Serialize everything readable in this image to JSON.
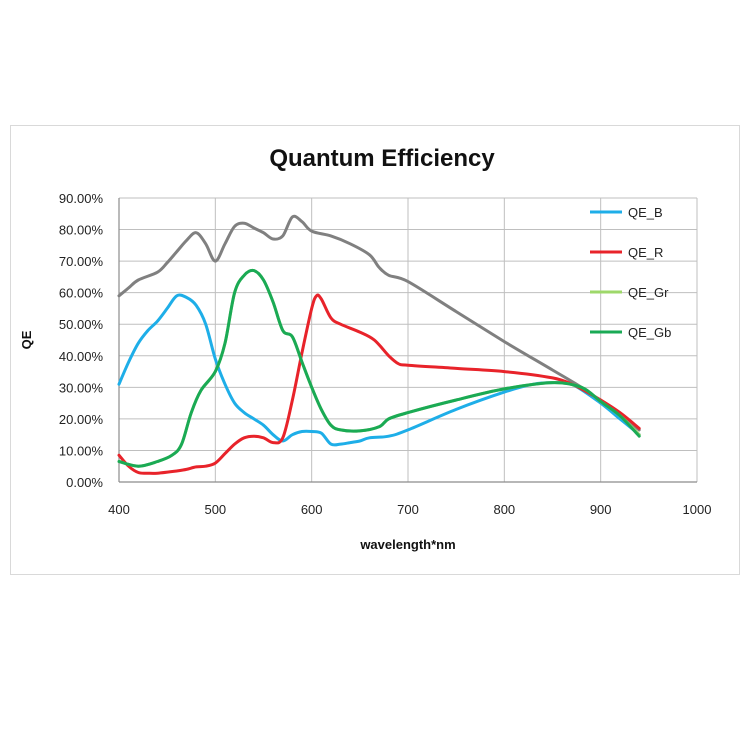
{
  "chart_data": {
    "type": "line",
    "title": "Quantum Efficiency",
    "xlabel": "wavelength*nm",
    "ylabel": "QE",
    "xlim": [
      400,
      1000
    ],
    "ylim": [
      0,
      0.9
    ],
    "xticks": [
      "400",
      "500",
      "600",
      "700",
      "800",
      "900",
      "1000"
    ],
    "yticks": [
      "0.00%",
      "10.00%",
      "20.00%",
      "30.00%",
      "40.00%",
      "50.00%",
      "60.00%",
      "70.00%",
      "80.00%",
      "90.00%"
    ],
    "grid": true,
    "legend_position": "right",
    "series": [
      {
        "name": "QE_B",
        "color": "#1eaee8",
        "points": [
          [
            400,
            0.31
          ],
          [
            410,
            0.38
          ],
          [
            420,
            0.44
          ],
          [
            430,
            0.48
          ],
          [
            440,
            0.51
          ],
          [
            450,
            0.55
          ],
          [
            460,
            0.59
          ],
          [
            470,
            0.585
          ],
          [
            480,
            0.56
          ],
          [
            490,
            0.5
          ],
          [
            500,
            0.39
          ],
          [
            510,
            0.31
          ],
          [
            520,
            0.25
          ],
          [
            530,
            0.22
          ],
          [
            540,
            0.2
          ],
          [
            550,
            0.18
          ],
          [
            560,
            0.15
          ],
          [
            570,
            0.13
          ],
          [
            580,
            0.15
          ],
          [
            590,
            0.16
          ],
          [
            600,
            0.16
          ],
          [
            610,
            0.155
          ],
          [
            620,
            0.12
          ],
          [
            630,
            0.12
          ],
          [
            640,
            0.125
          ],
          [
            650,
            0.13
          ],
          [
            660,
            0.14
          ],
          [
            680,
            0.145
          ],
          [
            700,
            0.165
          ],
          [
            750,
            0.23
          ],
          [
            800,
            0.285
          ],
          [
            830,
            0.31
          ],
          [
            850,
            0.315
          ],
          [
            870,
            0.31
          ],
          [
            900,
            0.25
          ],
          [
            920,
            0.2
          ],
          [
            940,
            0.15
          ]
        ]
      },
      {
        "name": "QE_R",
        "color": "#e8232a",
        "points": [
          [
            400,
            0.085
          ],
          [
            410,
            0.05
          ],
          [
            420,
            0.03
          ],
          [
            430,
            0.028
          ],
          [
            440,
            0.028
          ],
          [
            460,
            0.035
          ],
          [
            470,
            0.04
          ],
          [
            480,
            0.048
          ],
          [
            490,
            0.05
          ],
          [
            500,
            0.06
          ],
          [
            510,
            0.09
          ],
          [
            520,
            0.12
          ],
          [
            530,
            0.14
          ],
          [
            540,
            0.145
          ],
          [
            550,
            0.14
          ],
          [
            560,
            0.125
          ],
          [
            570,
            0.14
          ],
          [
            580,
            0.26
          ],
          [
            590,
            0.41
          ],
          [
            600,
            0.55
          ],
          [
            605,
            0.59
          ],
          [
            610,
            0.58
          ],
          [
            620,
            0.52
          ],
          [
            630,
            0.5
          ],
          [
            650,
            0.475
          ],
          [
            665,
            0.45
          ],
          [
            680,
            0.4
          ],
          [
            690,
            0.375
          ],
          [
            700,
            0.37
          ],
          [
            750,
            0.36
          ],
          [
            800,
            0.35
          ],
          [
            850,
            0.33
          ],
          [
            870,
            0.31
          ],
          [
            880,
            0.295
          ],
          [
            900,
            0.26
          ],
          [
            920,
            0.22
          ],
          [
            940,
            0.17
          ]
        ]
      },
      {
        "name": "QE_Gr",
        "color": "#9ed86a",
        "points": [
          [
            400,
            0.065
          ],
          [
            420,
            0.05
          ],
          [
            440,
            0.065
          ],
          [
            455,
            0.085
          ],
          [
            465,
            0.12
          ],
          [
            475,
            0.22
          ],
          [
            485,
            0.29
          ],
          [
            500,
            0.35
          ],
          [
            510,
            0.44
          ],
          [
            520,
            0.6
          ],
          [
            530,
            0.655
          ],
          [
            540,
            0.67
          ],
          [
            550,
            0.64
          ],
          [
            560,
            0.57
          ],
          [
            570,
            0.48
          ],
          [
            580,
            0.46
          ],
          [
            590,
            0.38
          ],
          [
            600,
            0.3
          ],
          [
            610,
            0.23
          ],
          [
            620,
            0.18
          ],
          [
            630,
            0.165
          ],
          [
            650,
            0.162
          ],
          [
            670,
            0.175
          ],
          [
            680,
            0.2
          ],
          [
            700,
            0.22
          ],
          [
            750,
            0.26
          ],
          [
            800,
            0.295
          ],
          [
            850,
            0.315
          ],
          [
            880,
            0.3
          ],
          [
            900,
            0.255
          ],
          [
            920,
            0.21
          ],
          [
            940,
            0.15
          ]
        ]
      },
      {
        "name": "QE_Gb",
        "color": "#1aaa55",
        "points": [
          [
            400,
            0.065
          ],
          [
            420,
            0.05
          ],
          [
            440,
            0.065
          ],
          [
            455,
            0.085
          ],
          [
            465,
            0.12
          ],
          [
            475,
            0.22
          ],
          [
            485,
            0.29
          ],
          [
            500,
            0.35
          ],
          [
            510,
            0.44
          ],
          [
            520,
            0.6
          ],
          [
            530,
            0.655
          ],
          [
            540,
            0.67
          ],
          [
            550,
            0.64
          ],
          [
            560,
            0.57
          ],
          [
            570,
            0.48
          ],
          [
            580,
            0.46
          ],
          [
            590,
            0.38
          ],
          [
            600,
            0.3
          ],
          [
            610,
            0.23
          ],
          [
            620,
            0.18
          ],
          [
            630,
            0.165
          ],
          [
            650,
            0.162
          ],
          [
            670,
            0.175
          ],
          [
            680,
            0.2
          ],
          [
            700,
            0.22
          ],
          [
            750,
            0.26
          ],
          [
            800,
            0.295
          ],
          [
            850,
            0.315
          ],
          [
            880,
            0.3
          ],
          [
            900,
            0.255
          ],
          [
            920,
            0.21
          ],
          [
            940,
            0.145
          ]
        ]
      },
      {
        "color": "#808080",
        "points": [
          [
            400,
            0.59
          ],
          [
            410,
            0.615
          ],
          [
            420,
            0.64
          ],
          [
            440,
            0.665
          ],
          [
            450,
            0.695
          ],
          [
            460,
            0.73
          ],
          [
            470,
            0.765
          ],
          [
            480,
            0.79
          ],
          [
            490,
            0.755
          ],
          [
            500,
            0.7
          ],
          [
            510,
            0.755
          ],
          [
            520,
            0.81
          ],
          [
            530,
            0.82
          ],
          [
            540,
            0.805
          ],
          [
            550,
            0.79
          ],
          [
            560,
            0.77
          ],
          [
            570,
            0.78
          ],
          [
            580,
            0.84
          ],
          [
            590,
            0.825
          ],
          [
            600,
            0.795
          ],
          [
            620,
            0.78
          ],
          [
            640,
            0.755
          ],
          [
            660,
            0.72
          ],
          [
            670,
            0.68
          ],
          [
            680,
            0.655
          ],
          [
            700,
            0.635
          ],
          [
            750,
            0.54
          ],
          [
            800,
            0.445
          ],
          [
            850,
            0.355
          ],
          [
            880,
            0.3
          ],
          [
            900,
            0.255
          ],
          [
            920,
            0.215
          ],
          [
            940,
            0.165
          ]
        ]
      }
    ]
  }
}
